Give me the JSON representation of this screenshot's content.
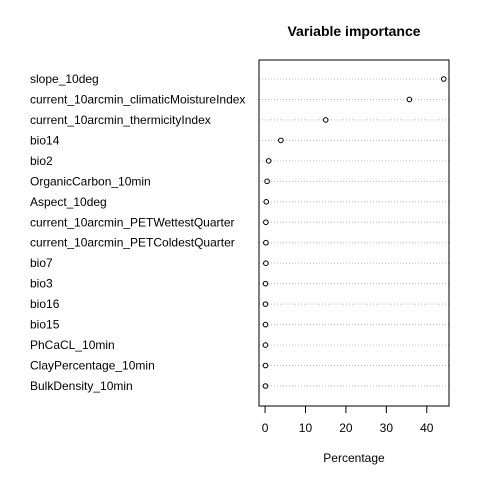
{
  "chart_data": {
    "type": "dotchart",
    "title": "Variable importance",
    "xlabel": "Percentage",
    "xlim": [
      -1.5,
      45.5
    ],
    "xticks": [
      0,
      10,
      20,
      30,
      40
    ],
    "grid": "dotted horizontal lines per row",
    "marker": "open circle",
    "categories": [
      "slope_10deg",
      "current_10arcmin_climaticMoistureIndex",
      "current_10arcmin_thermicityIndex",
      "bio14",
      "bio2",
      "OrganicCarbon_10min",
      "Aspect_10deg",
      "current_10arcmin_PETWettestQuarter",
      "current_10arcmin_PETColdestQuarter",
      "bio7",
      "bio3",
      "bio16",
      "bio15",
      "PhCaCL_10min",
      "ClayPercentage_10min",
      "BulkDensity_10min"
    ],
    "values": [
      44.2,
      35.7,
      15.0,
      3.9,
      0.9,
      0.5,
      0.3,
      0.2,
      0.2,
      0.2,
      0.1,
      0.1,
      0.1,
      0.1,
      0.1,
      0.1
    ]
  }
}
